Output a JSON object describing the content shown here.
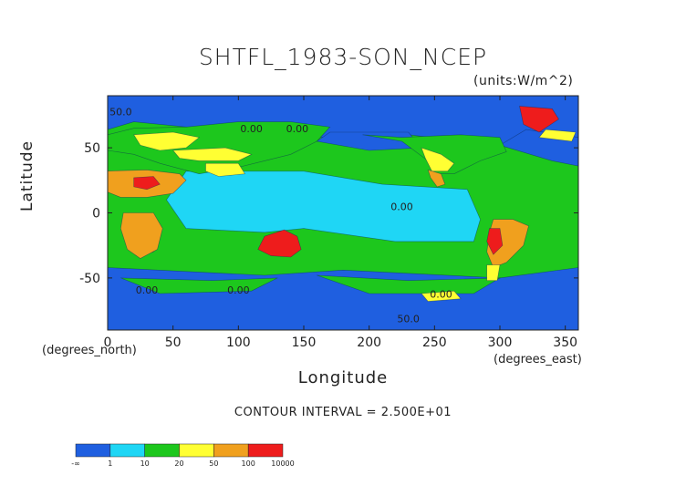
{
  "chart_data": {
    "type": "heatmap",
    "title": "SHTFL_1983-SON_NCEP",
    "units_label": "(units:W/m^2)",
    "xlabel": "Longitude",
    "ylabel": "Latitude",
    "x_unit_label": "(degrees_east)",
    "y_unit_label": "(degrees_north)",
    "xlim": [
      0,
      360
    ],
    "ylim": [
      -90,
      90
    ],
    "x_ticks": [
      0,
      50,
      100,
      150,
      200,
      250,
      300,
      350
    ],
    "y_ticks": [
      -50,
      0,
      50
    ],
    "contour_interval_text": "CONTOUR INTERVAL = 2.500E+01",
    "contour_labels": [
      {
        "text": "50.0",
        "lon": 10,
        "lat": 75
      },
      {
        "text": "0.00",
        "lon": 110,
        "lat": 62
      },
      {
        "text": "0.00",
        "lon": 145,
        "lat": 62
      },
      {
        "text": "0.00",
        "lon": 225,
        "lat": 2
      },
      {
        "text": "0.00",
        "lon": 30,
        "lat": -62
      },
      {
        "text": "0.00",
        "lon": 100,
        "lat": -62
      },
      {
        "text": "0.00",
        "lon": 255,
        "lat": -65
      },
      {
        "text": "50.0",
        "lon": 230,
        "lat": -84
      }
    ],
    "colorbar": {
      "bins": [
        {
          "label": "-∞",
          "color": "#1f5fe0"
        },
        {
          "label": "1",
          "color": "#1fd6f5"
        },
        {
          "label": "10",
          "color": "#1dc71d"
        },
        {
          "label": "20",
          "color": "#ffff33"
        },
        {
          "label": "50",
          "color": "#f0a01e"
        },
        {
          "label": "100",
          "color": "#ee1c1c"
        }
      ],
      "tick_labels": [
        "-∞",
        "1",
        "10",
        "20",
        "50",
        "100",
        "10000"
      ]
    },
    "regions": [
      {
        "name": "ocean-background",
        "class": 2,
        "poly": [
          [
            0,
            90
          ],
          [
            360,
            90
          ],
          [
            360,
            -90
          ],
          [
            0,
            -90
          ]
        ]
      },
      {
        "name": "tropical-pacific",
        "class": 1,
        "poly": [
          [
            60,
            32
          ],
          [
            150,
            32
          ],
          [
            210,
            22
          ],
          [
            275,
            18
          ],
          [
            285,
            -5
          ],
          [
            280,
            -22
          ],
          [
            220,
            -22
          ],
          [
            150,
            -12
          ],
          [
            120,
            -15
          ],
          [
            60,
            -12
          ],
          [
            45,
            10
          ]
        ]
      },
      {
        "name": "arctic-ocean",
        "class": 0,
        "poly": [
          [
            0,
            90
          ],
          [
            360,
            90
          ],
          [
            360,
            58
          ],
          [
            300,
            52
          ],
          [
            230,
            60
          ],
          [
            160,
            58
          ],
          [
            80,
            64
          ],
          [
            20,
            70
          ],
          [
            0,
            64
          ]
        ]
      },
      {
        "name": "north-atlantic-cold",
        "class": 0,
        "poly": [
          [
            300,
            52
          ],
          [
            340,
            40
          ],
          [
            360,
            36
          ],
          [
            360,
            58
          ],
          [
            320,
            64
          ]
        ]
      },
      {
        "name": "north-pacific-cold",
        "class": 0,
        "poly": [
          [
            160,
            55
          ],
          [
            200,
            48
          ],
          [
            240,
            50
          ],
          [
            230,
            62
          ],
          [
            170,
            62
          ]
        ]
      },
      {
        "name": "southern-ocean",
        "class": 0,
        "poly": [
          [
            0,
            -42
          ],
          [
            60,
            -45
          ],
          [
            120,
            -48
          ],
          [
            180,
            -44
          ],
          [
            240,
            -47
          ],
          [
            300,
            -50
          ],
          [
            360,
            -42
          ],
          [
            360,
            -90
          ],
          [
            0,
            -90
          ]
        ]
      },
      {
        "name": "south-indian-band",
        "class": 2,
        "poly": [
          [
            10,
            -50
          ],
          [
            80,
            -52
          ],
          [
            130,
            -50
          ],
          [
            110,
            -60
          ],
          [
            40,
            -62
          ]
        ]
      },
      {
        "name": "south-pacific-band",
        "class": 2,
        "poly": [
          [
            160,
            -48
          ],
          [
            230,
            -52
          ],
          [
            300,
            -50
          ],
          [
            280,
            -62
          ],
          [
            200,
            -62
          ]
        ]
      },
      {
        "name": "antarctic-yellow",
        "class": 3,
        "poly": [
          [
            240,
            -62
          ],
          [
            265,
            -60
          ],
          [
            270,
            -66
          ],
          [
            245,
            -68
          ]
        ]
      },
      {
        "name": "north-america-green",
        "class": 2,
        "poly": [
          [
            195,
            60
          ],
          [
            225,
            58
          ],
          [
            270,
            60
          ],
          [
            300,
            58
          ],
          [
            305,
            47
          ],
          [
            285,
            40
          ],
          [
            265,
            30
          ],
          [
            250,
            30
          ],
          [
            245,
            40
          ],
          [
            225,
            55
          ]
        ]
      },
      {
        "name": "north-america-yellow",
        "class": 3,
        "poly": [
          [
            240,
            50
          ],
          [
            255,
            45
          ],
          [
            265,
            38
          ],
          [
            260,
            32
          ],
          [
            248,
            32
          ],
          [
            243,
            42
          ]
        ]
      },
      {
        "name": "mexico-orange",
        "class": 4,
        "poly": [
          [
            245,
            33
          ],
          [
            255,
            30
          ],
          [
            258,
            22
          ],
          [
            252,
            20
          ],
          [
            247,
            27
          ]
        ]
      },
      {
        "name": "eurasia-green",
        "class": 2,
        "poly": [
          [
            20,
            65
          ],
          [
            60,
            66
          ],
          [
            100,
            70
          ],
          [
            140,
            70
          ],
          [
            170,
            66
          ],
          [
            160,
            55
          ],
          [
            140,
            45
          ],
          [
            120,
            40
          ],
          [
            100,
            35
          ],
          [
            70,
            30
          ],
          [
            40,
            38
          ],
          [
            20,
            45
          ],
          [
            0,
            48
          ],
          [
            0,
            60
          ]
        ]
      },
      {
        "name": "europe-yellow",
        "class": 3,
        "poly": [
          [
            20,
            60
          ],
          [
            50,
            62
          ],
          [
            70,
            58
          ],
          [
            60,
            50
          ],
          [
            40,
            48
          ],
          [
            25,
            52
          ]
        ]
      },
      {
        "name": "central-asia-yellow",
        "class": 3,
        "poly": [
          [
            50,
            48
          ],
          [
            90,
            50
          ],
          [
            110,
            45
          ],
          [
            100,
            40
          ],
          [
            70,
            40
          ],
          [
            55,
            42
          ]
        ]
      },
      {
        "name": "sahara-arabia-orange",
        "class": 4,
        "poly": [
          [
            -5,
            32
          ],
          [
            30,
            33
          ],
          [
            55,
            30
          ],
          [
            60,
            25
          ],
          [
            50,
            15
          ],
          [
            30,
            12
          ],
          [
            10,
            12
          ],
          [
            -5,
            18
          ]
        ]
      },
      {
        "name": "sahara-east-red",
        "class": 5,
        "poly": [
          [
            20,
            27
          ],
          [
            35,
            28
          ],
          [
            40,
            22
          ],
          [
            30,
            18
          ],
          [
            20,
            20
          ]
        ]
      },
      {
        "name": "tibet-yellow",
        "class": 3,
        "poly": [
          [
            75,
            38
          ],
          [
            100,
            38
          ],
          [
            105,
            30
          ],
          [
            85,
            28
          ],
          [
            75,
            32
          ]
        ]
      },
      {
        "name": "greenland-red",
        "class": 5,
        "poly": [
          [
            315,
            82
          ],
          [
            340,
            80
          ],
          [
            345,
            72
          ],
          [
            330,
            62
          ],
          [
            318,
            68
          ]
        ]
      },
      {
        "name": "north-atlantic-yellow",
        "class": 3,
        "poly": [
          [
            330,
            58
          ],
          [
            355,
            55
          ],
          [
            358,
            62
          ],
          [
            335,
            64
          ]
        ]
      },
      {
        "name": "southern-africa-red",
        "class": 5,
        "poly": [
          [
            12,
            -5
          ],
          [
            30,
            -5
          ],
          [
            40,
            -15
          ],
          [
            35,
            -30
          ],
          [
            22,
            -33
          ],
          [
            15,
            -25
          ],
          [
            12,
            -15
          ]
        ]
      },
      {
        "name": "southern-africa-orange",
        "class": 4,
        "poly": [
          [
            12,
            0
          ],
          [
            35,
            0
          ],
          [
            42,
            -12
          ],
          [
            38,
            -28
          ],
          [
            25,
            -35
          ],
          [
            15,
            -28
          ],
          [
            10,
            -12
          ]
        ]
      },
      {
        "name": "australia-red",
        "class": 5,
        "poly": [
          [
            120,
            -18
          ],
          [
            135,
            -13
          ],
          [
            145,
            -18
          ],
          [
            148,
            -28
          ],
          [
            140,
            -34
          ],
          [
            125,
            -33
          ],
          [
            115,
            -28
          ]
        ]
      },
      {
        "name": "south-america-orange",
        "class": 4,
        "poly": [
          [
            295,
            -5
          ],
          [
            310,
            -5
          ],
          [
            322,
            -10
          ],
          [
            318,
            -25
          ],
          [
            305,
            -38
          ],
          [
            295,
            -42
          ],
          [
            290,
            -30
          ],
          [
            292,
            -15
          ]
        ]
      },
      {
        "name": "south-america-red",
        "class": 5,
        "poly": [
          [
            292,
            -12
          ],
          [
            300,
            -12
          ],
          [
            302,
            -25
          ],
          [
            295,
            -32
          ],
          [
            290,
            -22
          ]
        ]
      },
      {
        "name": "patagonia-yellow",
        "class": 3,
        "poly": [
          [
            290,
            -40
          ],
          [
            300,
            -40
          ],
          [
            298,
            -52
          ],
          [
            290,
            -52
          ]
        ]
      }
    ]
  }
}
